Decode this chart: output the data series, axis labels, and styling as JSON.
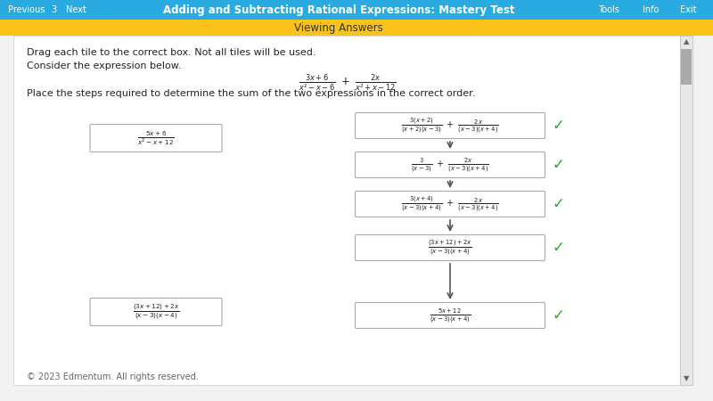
{
  "title_bar_color": "#29ABE2",
  "title_text": "Adding and Subtracting Rational Expressions: Mastery Test",
  "subtitle_bar_color": "#F9C31A",
  "subtitle_text": "Viewing Answers",
  "bg_color": "#F2F2F2",
  "content_bg": "#FFFFFF",
  "drag_text": "Drag each tile to the correct box. Not all tiles will be used.",
  "consider_text": "Consider the expression below.",
  "place_text": "Place the steps required to determine the sum of the two expressions in the correct order.",
  "check_color": "#22AA22",
  "footer_text": "© 2023 Edmentum. All rights reserved.",
  "footer_color": "#666666",
  "left_tile1_line1": "$\\frac{5x+6}{x^2-x+12}$",
  "left_tile2_line1": "$\\frac{(3x+12)+2x}{(x-3)(x-4)}$",
  "step1": "$\\frac{3(x+2)}{(x+2)(x-3)}\\ +\\ \\frac{2x}{(x-3)(x+4)}$",
  "step2": "$\\frac{3}{(x-3)}\\ +\\ \\frac{2x}{(x-3)(x+4)}$",
  "step3": "$\\frac{3(x+4)}{(x-3)(x+4)}\\ +\\ \\frac{2x}{(x-3)(x+4)}$",
  "step4": "$\\frac{(3x+12)+2x}{(x-3)(x+4)}$",
  "step5": "$\\frac{5x+12}{(x-3)(x+4)}$",
  "expr_top": "$\\frac{3x+6}{x^2-x-6}\\ +\\ \\frac{2x}{x^2+x-12}$"
}
